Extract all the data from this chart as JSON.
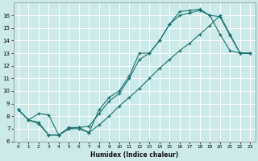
{
  "xlabel": "Humidex (Indice chaleur)",
  "bg_color": "#cceaea",
  "grid_color": "#ffffff",
  "line_color": "#1a7070",
  "xlim": [
    -0.5,
    23.5
  ],
  "ylim": [
    6,
    17
  ],
  "yticks": [
    6,
    7,
    8,
    9,
    10,
    11,
    12,
    13,
    14,
    15,
    16
  ],
  "xticks": [
    0,
    1,
    2,
    3,
    4,
    5,
    6,
    7,
    8,
    9,
    10,
    11,
    12,
    13,
    14,
    15,
    16,
    17,
    18,
    19,
    20,
    21,
    22,
    23
  ],
  "line1_x": [
    0,
    1,
    2,
    3,
    4,
    5,
    6,
    7,
    8,
    9,
    10,
    11,
    12,
    13,
    14,
    15,
    16,
    17,
    18,
    19,
    20,
    21,
    22,
    23
  ],
  "line1_y": [
    8.5,
    7.7,
    7.4,
    6.5,
    6.5,
    7.0,
    7.1,
    6.7,
    8.5,
    9.5,
    10.0,
    11.2,
    13.0,
    13.0,
    14.0,
    15.3,
    16.3,
    16.4,
    16.5,
    16.0,
    14.5,
    13.2,
    13.0,
    13.0
  ],
  "line2_x": [
    0,
    1,
    2,
    3,
    4,
    5,
    6,
    7,
    8,
    9,
    10,
    11,
    12,
    13,
    14,
    15,
    16,
    17,
    18,
    19,
    20,
    21,
    22,
    23
  ],
  "line2_y": [
    8.5,
    7.7,
    8.2,
    8.1,
    6.5,
    7.1,
    7.1,
    7.2,
    8.2,
    9.2,
    9.8,
    11.0,
    12.5,
    13.0,
    14.0,
    15.3,
    16.0,
    16.2,
    16.4,
    16.0,
    15.9,
    14.4,
    13.0,
    13.0
  ],
  "line3_x": [
    0,
    1,
    2,
    3,
    4,
    5,
    6,
    7,
    8,
    9,
    10,
    11,
    12,
    13,
    14,
    15,
    16,
    17,
    18,
    19,
    20,
    21,
    22,
    23
  ],
  "line3_y": [
    8.5,
    7.7,
    7.5,
    6.5,
    6.5,
    7.0,
    7.0,
    6.7,
    7.3,
    8.0,
    8.8,
    9.5,
    10.2,
    11.0,
    11.8,
    12.5,
    13.2,
    13.8,
    14.5,
    15.2,
    16.0,
    14.5,
    13.0,
    13.0
  ]
}
